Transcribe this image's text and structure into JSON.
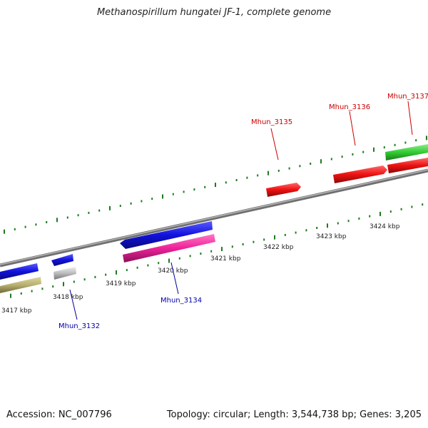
{
  "title": "Methanospirillum hungatei JF-1, complete genome",
  "accession_text": "Accession: NC_007796",
  "topology_text": "Topology: circular; Length: 3,544,738 bp; Genes: 3,205",
  "colors": {
    "backbone": "#8a8a8a",
    "ticks": "#1f7a1f",
    "red": "#ee1111",
    "blue": "#1111dd",
    "green": "#33cc33",
    "pink": "#ee2299",
    "grey": "#bbbbbb",
    "olive": "#b8b070"
  },
  "ticks": [
    {
      "label": "3417 kbp"
    },
    {
      "label": "3418 kbp"
    },
    {
      "label": "3419 kbp"
    },
    {
      "label": "3420 kbp"
    },
    {
      "label": "3421 kbp"
    },
    {
      "label": "3422 kbp"
    },
    {
      "label": "3423 kbp"
    },
    {
      "label": "3424 kbp"
    }
  ],
  "gene_labels": [
    {
      "name": "Mhun_3132",
      "color": "blue"
    },
    {
      "name": "Mhun_3134",
      "color": "blue"
    },
    {
      "name": "Mhun_3135",
      "color": "red"
    },
    {
      "name": "Mhun_3136",
      "color": "red"
    },
    {
      "name": "Mhun_3137",
      "color": "red"
    }
  ]
}
